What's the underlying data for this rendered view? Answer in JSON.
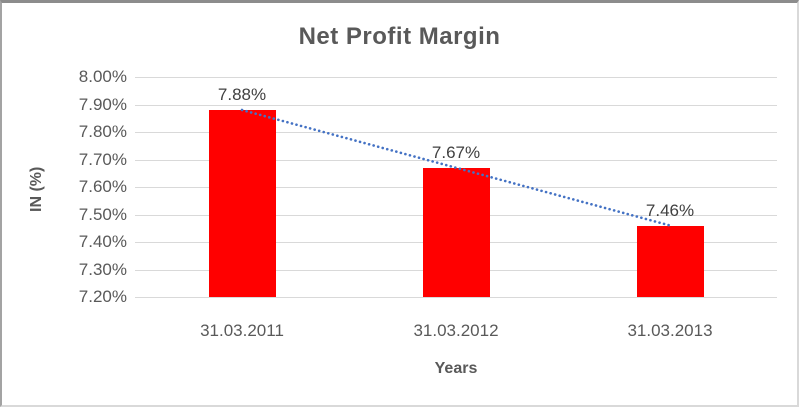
{
  "chart_data": {
    "type": "bar",
    "title": "Net Profit Margin",
    "xlabel": "Years",
    "ylabel": "IN (%)",
    "categories": [
      "31.03.2011",
      "31.03.2012",
      "31.03.2013"
    ],
    "values": [
      7.88,
      7.67,
      7.46
    ],
    "data_labels": [
      "7.88%",
      "7.67%",
      "7.46%"
    ],
    "ylim": [
      7.2,
      8.0
    ],
    "ytick_labels": [
      "8.00%",
      "7.90%",
      "7.80%",
      "7.70%",
      "7.60%",
      "7.50%",
      "7.40%",
      "7.30%",
      "7.20%"
    ],
    "grid": true,
    "legend": "none",
    "bar_color": "#FF0000",
    "gridline_color": "#D9D9D9",
    "text_color": "#595959",
    "data_label_color": "#404040",
    "trendline": {
      "type": "linear",
      "style": "dotted",
      "color": "#4472C4",
      "from_value": 7.88,
      "to_value": 7.46
    }
  }
}
